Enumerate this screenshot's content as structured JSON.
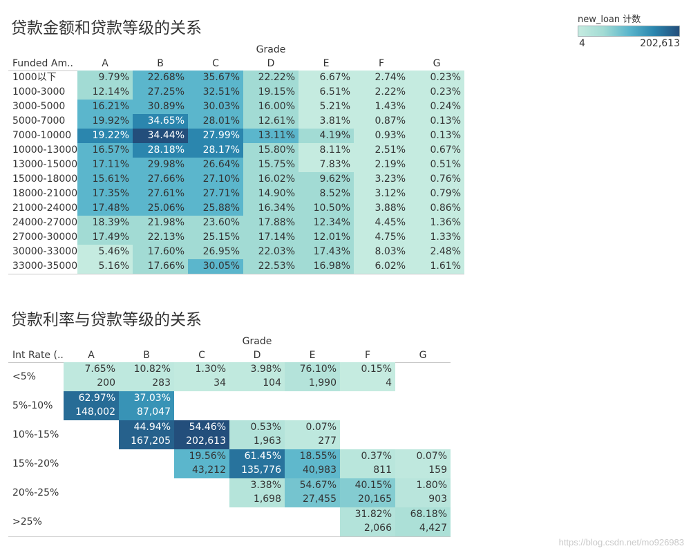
{
  "legend": {
    "title": "new_loan 计数",
    "min_label": "4",
    "max_label": "202,613",
    "min": 4,
    "max": 202613,
    "colors": [
      "#c5ebe0",
      "#a2dbd4",
      "#5bb6cc",
      "#2b86ae",
      "#234e7b"
    ]
  },
  "watermark": "https://blog.csdn.net/mo926983",
  "chart_data": [
    {
      "type": "heatmap",
      "title": "贷款金额和贷款等级的关系",
      "column_header": "Grade",
      "row_header": "Funded Am..",
      "columns": [
        "A",
        "B",
        "C",
        "D",
        "E",
        "F",
        "G"
      ],
      "rows": [
        "1000以下",
        "1000-3000",
        "3000-5000",
        "5000-7000",
        "7000-10000",
        "10000-13000",
        "13000-15000",
        "15000-18000",
        "18000-21000",
        "21000-24000",
        "24000-27000",
        "27000-30000",
        "30000-33000",
        "33000-35000"
      ],
      "values": [
        [
          "9.79%",
          "22.68%",
          "35.67%",
          "22.22%",
          "6.67%",
          "2.74%",
          "0.23%"
        ],
        [
          "12.14%",
          "27.25%",
          "32.51%",
          "19.15%",
          "6.51%",
          "2.22%",
          "0.23%"
        ],
        [
          "16.21%",
          "30.89%",
          "30.03%",
          "16.00%",
          "5.21%",
          "1.43%",
          "0.24%"
        ],
        [
          "19.92%",
          "34.65%",
          "28.01%",
          "12.61%",
          "3.81%",
          "0.87%",
          "0.13%"
        ],
        [
          "19.22%",
          "34.44%",
          "27.99%",
          "13.11%",
          "4.19%",
          "0.93%",
          "0.13%"
        ],
        [
          "16.57%",
          "28.18%",
          "28.17%",
          "15.80%",
          "8.11%",
          "2.51%",
          "0.67%"
        ],
        [
          "17.11%",
          "29.98%",
          "26.64%",
          "15.75%",
          "7.83%",
          "2.19%",
          "0.51%"
        ],
        [
          "15.61%",
          "27.66%",
          "27.10%",
          "16.02%",
          "9.62%",
          "3.23%",
          "0.76%"
        ],
        [
          "17.35%",
          "27.61%",
          "27.71%",
          "14.90%",
          "8.52%",
          "3.12%",
          "0.79%"
        ],
        [
          "17.48%",
          "25.06%",
          "25.88%",
          "16.34%",
          "10.50%",
          "3.88%",
          "0.86%"
        ],
        [
          "18.39%",
          "21.98%",
          "23.60%",
          "17.88%",
          "12.34%",
          "4.45%",
          "1.36%"
        ],
        [
          "17.49%",
          "22.13%",
          "25.15%",
          "17.14%",
          "12.01%",
          "4.75%",
          "1.33%"
        ],
        [
          "5.46%",
          "17.60%",
          "26.95%",
          "22.03%",
          "17.43%",
          "8.03%",
          "2.48%"
        ],
        [
          "5.16%",
          "17.66%",
          "30.05%",
          "22.53%",
          "16.98%",
          "6.02%",
          "1.61%"
        ]
      ],
      "color_levels": [
        [
          1,
          2,
          2,
          1,
          0,
          0,
          0
        ],
        [
          1,
          2,
          2,
          1,
          0,
          0,
          0
        ],
        [
          2,
          2,
          2,
          1,
          0,
          0,
          0
        ],
        [
          2,
          3,
          2,
          1,
          0,
          0,
          0
        ],
        [
          3,
          4,
          3,
          2,
          1,
          0,
          0
        ],
        [
          2,
          3,
          3,
          1,
          0,
          0,
          0
        ],
        [
          2,
          2,
          2,
          1,
          0,
          0,
          0
        ],
        [
          2,
          2,
          2,
          1,
          1,
          0,
          0
        ],
        [
          2,
          2,
          2,
          1,
          1,
          0,
          0
        ],
        [
          2,
          2,
          2,
          1,
          1,
          0,
          0
        ],
        [
          1,
          1,
          1,
          1,
          1,
          0,
          0
        ],
        [
          1,
          1,
          1,
          1,
          1,
          0,
          0
        ],
        [
          0,
          1,
          1,
          1,
          1,
          0,
          0
        ],
        [
          0,
          1,
          2,
          1,
          1,
          0,
          0
        ]
      ]
    },
    {
      "type": "heatmap",
      "title": "贷款利率与贷款等级的关系",
      "column_header": "Grade",
      "row_header": "Int Rate (..",
      "columns": [
        "A",
        "B",
        "C",
        "D",
        "E",
        "F",
        "G"
      ],
      "rows": [
        "<5%",
        "5%-10%",
        "10%-15%",
        "15%-20%",
        "20%-25%",
        ">25%"
      ],
      "percent": [
        [
          "7.65%",
          "10.82%",
          "1.30%",
          "3.98%",
          "76.10%",
          "0.15%",
          null
        ],
        [
          "62.97%",
          "37.03%",
          null,
          null,
          null,
          null,
          null
        ],
        [
          null,
          "44.94%",
          "54.46%",
          "0.53%",
          "0.07%",
          null,
          null
        ],
        [
          null,
          null,
          "19.56%",
          "61.45%",
          "18.55%",
          "0.37%",
          "0.07%"
        ],
        [
          null,
          null,
          null,
          "3.38%",
          "54.67%",
          "40.15%",
          "1.80%"
        ],
        [
          null,
          null,
          null,
          null,
          null,
          "31.82%",
          "68.18%"
        ]
      ],
      "counts": [
        [
          "200",
          "283",
          "34",
          "104",
          "1,990",
          "4",
          null
        ],
        [
          "148,002",
          "87,047",
          null,
          null,
          null,
          null,
          null
        ],
        [
          null,
          "167,205",
          "202,613",
          "1,963",
          "277",
          null,
          null
        ],
        [
          null,
          null,
          "43,212",
          "135,776",
          "40,983",
          "811",
          "159"
        ],
        [
          null,
          null,
          null,
          "1,698",
          "27,455",
          "20,165",
          "903"
        ],
        [
          null,
          null,
          null,
          null,
          null,
          "2,066",
          "4,427"
        ]
      ],
      "count_values": [
        [
          200,
          283,
          34,
          104,
          1990,
          4,
          null
        ],
        [
          148002,
          87047,
          null,
          null,
          null,
          null,
          null
        ],
        [
          null,
          167205,
          202613,
          1963,
          277,
          null,
          null
        ],
        [
          null,
          null,
          43212,
          135776,
          40983,
          811,
          159
        ],
        [
          null,
          null,
          null,
          1698,
          27455,
          20165,
          903
        ],
        [
          null,
          null,
          null,
          null,
          null,
          2066,
          4427
        ]
      ]
    }
  ]
}
